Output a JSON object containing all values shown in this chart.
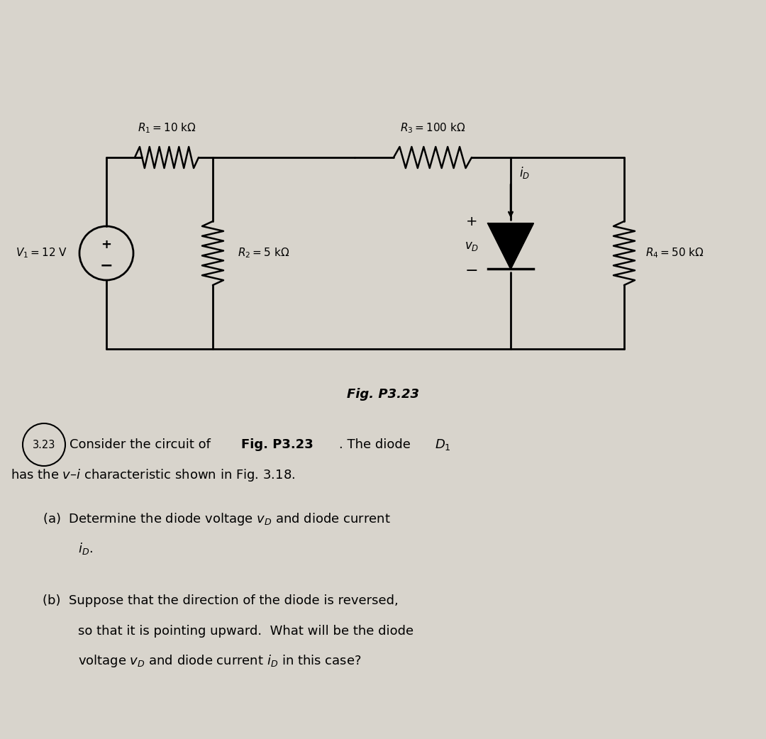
{
  "bg_color": "#d8d4cc",
  "fig_width": 10.8,
  "fig_height": 10.42,
  "fig_label": "Fig. P3.23",
  "problem_number": "3.23",
  "line1": "Consider the circuit of ",
  "bold1": "Fig. P3.23",
  "line1b": ". The diode ",
  "line1c": "D",
  "line1d": "₁",
  "line2": "has the υ–ℹ characteristic shown in Fig. 3.18.",
  "part_a": "(a) Determine the diode voltage υ",
  "part_a2": "D",
  "part_a3": " and diode current",
  "part_a4": "ℹ",
  "part_a5": "D",
  "part_a6": ".",
  "part_b1": "(b) Suppose that the direction of the diode is reversed,",
  "part_b2": "so that it is pointing upward. What will be the diode",
  "part_b3": "voltage υ",
  "part_b3b": "D",
  "part_b3c": " and diode current ℹ",
  "part_b3d": "D",
  "part_b3e": " in this case?",
  "R1_label": "$R_1 = 10$ k$\\Omega$",
  "R2_label": "$R_2 = 5$ k$\\Omega$",
  "R3_label": "$R_3 = 100$ k$\\Omega$",
  "R4_label": "$R_4 = 50$ k$\\Omega$",
  "V1_label": "$V_1 = 12$ V",
  "iD_label": "$i_D$",
  "vD_label": "$v_D$"
}
